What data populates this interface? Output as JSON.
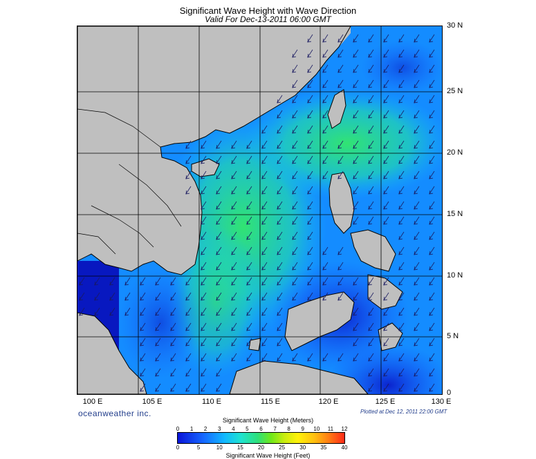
{
  "title": "Significant Wave Height with Wave Direction",
  "subtitle": "Valid For Dec-13-2011 06:00 GMT",
  "lat_labels": [
    "30 N",
    "25 N",
    "20 N",
    "15 N",
    "10 N",
    "5 N",
    "0"
  ],
  "lon_labels": [
    "100 E",
    "105 E",
    "110 E",
    "115 E",
    "120 E",
    "125 E",
    "130 E"
  ],
  "brand": "oceanweather inc.",
  "plotted": "Plotted at Dec 12, 2011 22:00 GMT",
  "colorbar": {
    "title_meters": "Significant Wave Height (Meters)",
    "title_feet": "Significant Wave Height (Feet)",
    "ticks_meters": [
      "0",
      "1",
      "2",
      "3",
      "4",
      "5",
      "6",
      "7",
      "8",
      "9",
      "10",
      "11",
      "12"
    ],
    "ticks_feet": [
      "0",
      "5",
      "10",
      "15",
      "20",
      "25",
      "30",
      "35",
      "40"
    ]
  },
  "colors": {
    "land": "#bfbfbf",
    "low": "#0a14d8",
    "mid": "#12b8ff",
    "high": "#2ee07a"
  },
  "wave_direction": "northeast (arrows point to southwest)"
}
